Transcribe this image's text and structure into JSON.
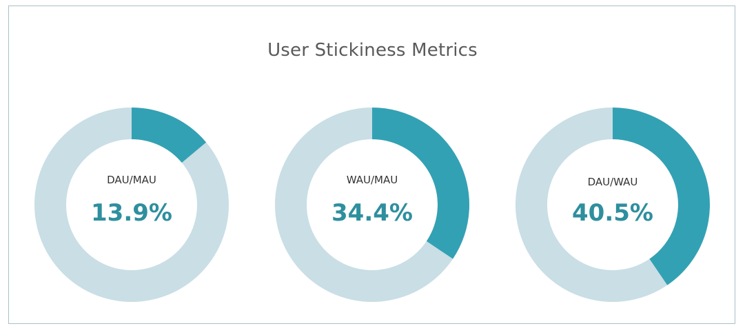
{
  "title": "User Stickiness Metrics",
  "colors": {
    "filled": "#33a1b4",
    "remaining": "#c9dee5",
    "value_text": "#2e8f9e"
  },
  "metrics": [
    {
      "label": "DAU/MAU",
      "value_text": "13.9%",
      "value": 13.9
    },
    {
      "label": "WAU/MAU",
      "value_text": "34.4%",
      "value": 34.4
    },
    {
      "label": "DAU/WAU",
      "value_text": "40.5%",
      "value": 40.5
    }
  ],
  "chart_data": {
    "type": "pie",
    "subtype": "donut",
    "title": "User Stickiness Metrics",
    "charts": [
      {
        "label": "DAU/MAU",
        "slices": [
          {
            "name": "DAU/MAU",
            "value": 13.9
          },
          {
            "name": "Remaining",
            "value": 86.1
          }
        ]
      },
      {
        "label": "WAU/MAU",
        "slices": [
          {
            "name": "WAU/MAU",
            "value": 34.4
          },
          {
            "name": "Remaining",
            "value": 65.6
          }
        ]
      },
      {
        "label": "DAU/WAU",
        "slices": [
          {
            "name": "DAU/WAU",
            "value": 40.5
          },
          {
            "name": "Remaining",
            "value": 59.5
          }
        ]
      }
    ]
  }
}
